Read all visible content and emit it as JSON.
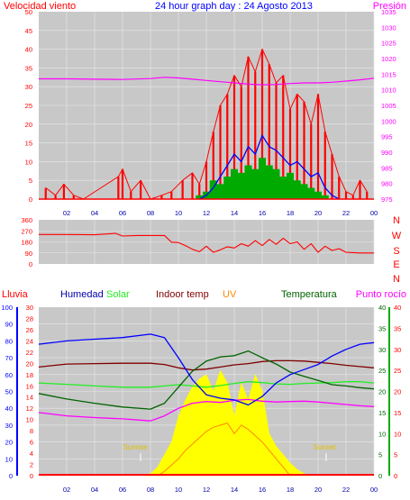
{
  "colors": {
    "background": "#ffffff",
    "plot_bg": "#c8c8c8",
    "grid": "#e8e8e8",
    "red": "#ff0000",
    "blue": "#0000ff",
    "dark_blue": "#0000aa",
    "magenta": "#ff00ff",
    "green": "#00aa00",
    "dark_green": "#006400",
    "light_green": "#22ee22",
    "maroon": "#800000",
    "orange": "#ff8800",
    "yellow": "#ffff00",
    "gold": "#e0c000"
  },
  "chart_data": [
    {
      "id": "wind",
      "type": "line",
      "title": "24 hour graph day : 24 Agosto 2013",
      "left_label": "Velocidad viento",
      "right_label": "Presión",
      "left_ticks": [
        "0",
        "5",
        "10",
        "15",
        "20",
        "25",
        "30",
        "35",
        "40",
        "45",
        "50"
      ],
      "right_ticks": [
        "975",
        "980",
        "985",
        "990",
        "995",
        "1000",
        "1005",
        "1010",
        "1015",
        "1020",
        "1025",
        "1030",
        "1035"
      ],
      "x_ticks": [
        "02",
        "04",
        "06",
        "08",
        "10",
        "12",
        "14",
        "16",
        "18",
        "20",
        "22",
        "00"
      ],
      "ylim_left": [
        0,
        50
      ],
      "ylim_right": [
        975,
        1035
      ],
      "grid": true,
      "series": [
        {
          "role": "gust",
          "x": [
            0.5,
            1.2,
            1.8,
            2.5,
            3.2,
            5.7,
            6.0,
            6.6,
            7.3,
            8.0,
            8.8,
            9.5,
            10.3,
            11.0,
            11.5,
            12.0,
            12.5,
            13.0,
            13.5,
            14.0,
            14.5,
            15.0,
            15.5,
            16.0,
            16.5,
            17.0,
            17.5,
            18.0,
            18.5,
            19.0,
            19.5,
            20.0,
            20.5,
            21.0,
            21.5,
            22.0,
            22.5,
            23.0,
            23.5
          ],
          "values": [
            3,
            1,
            4,
            1,
            0,
            6,
            8,
            2,
            5,
            0,
            1,
            2,
            5,
            7,
            4,
            10,
            18,
            25,
            28,
            33,
            30,
            38,
            34,
            40,
            36,
            31,
            33,
            24,
            28,
            26,
            20,
            28,
            18,
            12,
            6,
            2,
            1,
            5,
            2
          ]
        },
        {
          "role": "speed",
          "x": [
            11.5,
            12.0,
            12.5,
            13.0,
            13.5,
            14.0,
            14.5,
            15.0,
            15.5,
            16.0,
            16.5,
            17.0,
            17.5,
            18.0,
            18.5,
            19.0,
            19.5,
            20.0,
            20.5,
            21.0,
            21.5
          ],
          "values": [
            0,
            1,
            3,
            6,
            9,
            12,
            10,
            14,
            12,
            17,
            14,
            13,
            11,
            9,
            10,
            8,
            6,
            7,
            3,
            1,
            0
          ]
        },
        {
          "role": "bearing-blocks",
          "x": [
            11.5,
            12.0,
            12.5,
            13.0,
            13.5,
            14.0,
            14.5,
            15.0,
            15.5,
            16.0,
            16.5,
            17.0,
            17.5,
            18.0,
            18.5,
            19.0,
            19.5,
            20.0,
            20.5
          ],
          "values": [
            1,
            2,
            5,
            4,
            6,
            8,
            7,
            9,
            8,
            11,
            9,
            8,
            6,
            7,
            5,
            4,
            3,
            2,
            1
          ]
        },
        {
          "role": "pressure",
          "axis": "right",
          "x": [
            0,
            2,
            4,
            6,
            8,
            9,
            10,
            11,
            12,
            13,
            14,
            15,
            16,
            17,
            18,
            19,
            20,
            21,
            22,
            23,
            24
          ],
          "values": [
            1013.5,
            1013.5,
            1013.4,
            1013.3,
            1013.6,
            1014.0,
            1013.8,
            1013.4,
            1013.0,
            1012.6,
            1012.2,
            1011.8,
            1011.6,
            1011.7,
            1012.0,
            1012.2,
            1012.2,
            1012.4,
            1012.8,
            1013.2,
            1013.7
          ]
        }
      ]
    },
    {
      "id": "direction",
      "type": "line",
      "left_ticks": [
        "0",
        "90",
        "180",
        "270",
        "360"
      ],
      "compass": [
        "N",
        "W",
        "S",
        "E",
        "N"
      ],
      "ylim": [
        0,
        360
      ],
      "grid": true,
      "series": [
        {
          "x": [
            0,
            2,
            4,
            5.5,
            6,
            7,
            8,
            9,
            9.5,
            10,
            10.5,
            11,
            11.5,
            12,
            12.5,
            13,
            13.5,
            14,
            14.5,
            15,
            15.5,
            16,
            16.5,
            17,
            17.5,
            18,
            18.5,
            19,
            19.5,
            20,
            20.5,
            21,
            21.5,
            22,
            23,
            24
          ],
          "values": [
            240,
            240,
            238,
            250,
            228,
            232,
            232,
            232,
            178,
            175,
            150,
            120,
            100,
            145,
            95,
            115,
            140,
            130,
            165,
            145,
            190,
            150,
            200,
            160,
            210,
            165,
            180,
            120,
            165,
            95,
            145,
            110,
            125,
            95,
            90,
            90
          ]
        }
      ]
    },
    {
      "id": "temperature",
      "type": "line",
      "labels": [
        "Lluvia",
        "Humedad",
        "Solar",
        "Indoor temp",
        "UV",
        "Temperatura",
        "Punto rocío"
      ],
      "left_ticks_humidity": [
        "0",
        "10",
        "20",
        "30",
        "40",
        "50",
        "60",
        "70",
        "80",
        "90",
        "100"
      ],
      "left_ticks_rain": [
        "0",
        "2",
        "4",
        "6",
        "8",
        "10",
        "12",
        "14",
        "16",
        "18",
        "20",
        "22",
        "24",
        "26",
        "28",
        "30"
      ],
      "right_ticks_temp": [
        "0",
        "5",
        "10",
        "15",
        "20",
        "25",
        "30",
        "35",
        "40"
      ],
      "right_ticks_solar": [
        "0",
        "5",
        "10",
        "15",
        "20",
        "25",
        "30",
        "35",
        "40"
      ],
      "x_ticks": [
        "02",
        "04",
        "06",
        "08",
        "10",
        "12",
        "14",
        "16",
        "18",
        "20",
        "22",
        "00"
      ],
      "annotations": [
        "Sunrise",
        "Sunset"
      ],
      "grid": true,
      "series": [
        {
          "role": "humidity",
          "axis": "left-humidity",
          "x": [
            0,
            2,
            4,
            6,
            8,
            9,
            10,
            11,
            12,
            13,
            14,
            15,
            16,
            17,
            18,
            19,
            20,
            21,
            22,
            23,
            24
          ],
          "values": [
            78,
            80,
            81,
            82,
            84,
            82,
            70,
            57,
            48,
            46,
            45,
            42,
            47,
            55,
            60,
            63,
            66,
            71,
            75,
            78,
            79
          ]
        },
        {
          "role": "indoor-temp",
          "axis": "right-temp",
          "x": [
            0,
            2,
            4,
            6,
            8,
            9,
            10,
            11,
            12,
            13,
            14,
            15,
            16,
            17,
            18,
            19,
            20,
            21,
            22,
            23,
            24
          ],
          "values": [
            25.8,
            26.5,
            26.6,
            26.7,
            26.7,
            26.4,
            25.6,
            25.1,
            25.3,
            25.8,
            26.3,
            26.6,
            27.1,
            27.3,
            27.3,
            27.2,
            26.9,
            26.6,
            26.2,
            25.9,
            25.6
          ]
        },
        {
          "role": "temperature",
          "axis": "right-temp",
          "x": [
            0,
            2,
            4,
            6,
            8,
            9,
            10,
            11,
            12,
            13,
            14,
            15,
            16,
            17,
            18,
            19,
            20,
            21,
            22,
            23,
            24
          ],
          "values": [
            19.5,
            18.2,
            17.2,
            16.3,
            15.8,
            17.2,
            21.0,
            24.8,
            27.2,
            28.2,
            28.5,
            29.6,
            28.0,
            26.5,
            24.6,
            23.6,
            22.6,
            21.6,
            21.3,
            20.9,
            20.6
          ]
        },
        {
          "role": "solar-green",
          "axis": "right-temp",
          "x": [
            0,
            2,
            4,
            6,
            8,
            9,
            10,
            11,
            12,
            13,
            14,
            15,
            16,
            17,
            18,
            19,
            20,
            21,
            22,
            23,
            24
          ],
          "values": [
            22.0,
            21.7,
            21.3,
            21.0,
            21.0,
            21.3,
            21.6,
            21.3,
            21.0,
            21.4,
            21.9,
            22.3,
            22.1,
            21.8,
            21.7,
            21.9,
            22.0,
            22.1,
            22.3,
            22.3,
            22.0
          ]
        },
        {
          "role": "dew-point",
          "axis": "right-temp",
          "x": [
            0,
            2,
            4,
            6,
            8,
            9,
            10,
            11,
            12,
            13,
            14,
            15,
            16,
            17,
            18,
            19,
            20,
            21,
            22,
            23,
            24
          ],
          "values": [
            15.0,
            14.2,
            13.8,
            13.5,
            13.0,
            14.2,
            16.0,
            17.2,
            17.6,
            17.4,
            17.9,
            18.1,
            17.7,
            17.5,
            17.6,
            17.7,
            17.5,
            17.2,
            16.9,
            16.6,
            16.4
          ]
        },
        {
          "role": "solar-radiation",
          "axis": "right-solar",
          "x": [
            7.5,
            8.0,
            8.5,
            9.0,
            9.5,
            10.0,
            10.5,
            11.0,
            11.5,
            12.0,
            12.5,
            13.0,
            13.5,
            14.0,
            14.5,
            15.0,
            15.5,
            16.0,
            16.5,
            17.0,
            17.5,
            18.0,
            18.5,
            19.0,
            19.5
          ],
          "values": [
            0,
            0.5,
            2,
            5,
            8,
            14,
            18,
            21,
            23,
            24,
            20,
            25,
            22,
            14,
            22,
            18,
            24,
            20,
            10,
            7,
            5,
            3,
            1.5,
            0.5,
            0
          ]
        },
        {
          "role": "uv",
          "axis": "right-solar",
          "x": [
            8.5,
            9.0,
            9.5,
            10.0,
            10.5,
            11.0,
            11.5,
            12.0,
            12.5,
            13.0,
            13.5,
            14.0,
            14.5,
            15.0,
            15.5,
            16.0,
            16.5,
            17.0,
            17.5,
            18.0
          ],
          "values": [
            0,
            1,
            2.5,
            4,
            6,
            7.5,
            9,
            10.5,
            11.5,
            12,
            12.5,
            10,
            12,
            11,
            9.5,
            8,
            6,
            4,
            2,
            0
          ]
        },
        {
          "role": "rain",
          "axis": "left-rain",
          "x": [
            0,
            24
          ],
          "values": [
            0,
            0
          ]
        }
      ]
    }
  ]
}
